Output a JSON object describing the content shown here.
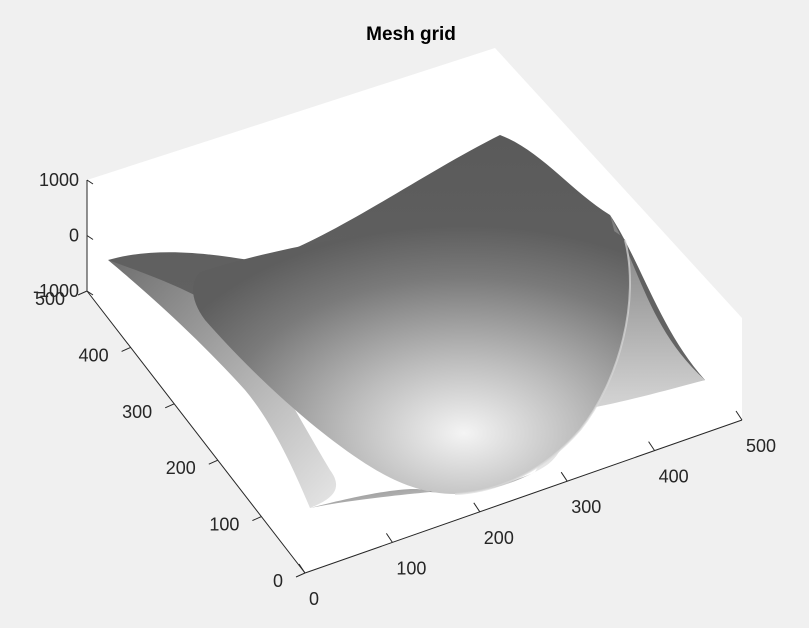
{
  "chart_data": {
    "type": "surface",
    "title": "Mesh grid",
    "xlabel": "",
    "ylabel": "",
    "zlabel": "",
    "colormap": "gray",
    "background_color": "#f0f0f0",
    "axes_color": "#ffffff",
    "xlim": [
      0,
      500
    ],
    "ylim": [
      0,
      500
    ],
    "zlim": [
      -1000,
      1000
    ],
    "x_ticks": [
      0,
      100,
      200,
      300,
      400,
      500
    ],
    "y_ticks": [
      0,
      100,
      200,
      300,
      400,
      500
    ],
    "z_ticks": [
      -1000,
      0,
      1000
    ],
    "x_tick_labels": [
      "0",
      "100",
      "200",
      "300",
      "400",
      "500"
    ],
    "y_tick_labels": [
      "0",
      "100",
      "200",
      "300",
      "400",
      "500"
    ],
    "z_tick_labels": [
      "-1000",
      "0",
      "1000"
    ],
    "grid": false,
    "legend": "none"
  }
}
